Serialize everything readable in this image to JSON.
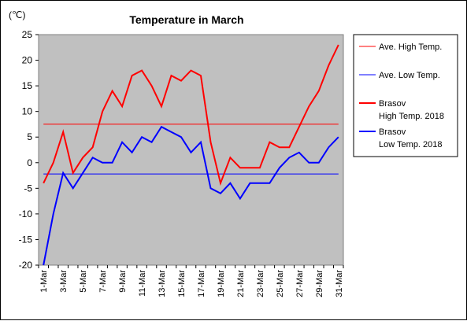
{
  "chart_data": {
    "type": "line",
    "title": "Temperature in March",
    "unit_label": "(℃)",
    "ylim": [
      -20,
      25
    ],
    "yticks": [
      25,
      20,
      15,
      10,
      5,
      0,
      -5,
      -10,
      -15,
      -20
    ],
    "grid": false,
    "legend_placement": "right",
    "plot_background": "#c0c0c0",
    "categories": [
      "1-Mar",
      "2-Mar",
      "3-Mar",
      "4-Mar",
      "5-Mar",
      "6-Mar",
      "7-Mar",
      "8-Mar",
      "9-Mar",
      "10-Mar",
      "11-Mar",
      "12-Mar",
      "13-Mar",
      "14-Mar",
      "15-Mar",
      "16-Mar",
      "17-Mar",
      "18-Mar",
      "19-Mar",
      "20-Mar",
      "21-Mar",
      "22-Mar",
      "23-Mar",
      "24-Mar",
      "25-Mar",
      "26-Mar",
      "27-Mar",
      "28-Mar",
      "29-Mar",
      "30-Mar",
      "31-Mar"
    ],
    "x_tick_labels": [
      "1-Mar",
      "3-Mar",
      "5-Mar",
      "7-Mar",
      "9-Mar",
      "11-Mar",
      "13-Mar",
      "15-Mar",
      "17-Mar",
      "19-Mar",
      "21-Mar",
      "23-Mar",
      "25-Mar",
      "27-Mar",
      "29-Mar",
      "31-Mar"
    ],
    "series": [
      {
        "name": "Ave. High Temp.",
        "color": "#ff0000",
        "width": 1,
        "values": [
          7.5,
          7.5,
          7.5,
          7.5,
          7.5,
          7.5,
          7.5,
          7.5,
          7.5,
          7.5,
          7.5,
          7.5,
          7.5,
          7.5,
          7.5,
          7.5,
          7.5,
          7.5,
          7.5,
          7.5,
          7.5,
          7.5,
          7.5,
          7.5,
          7.5,
          7.5,
          7.5,
          7.5,
          7.5,
          7.5,
          7.5
        ]
      },
      {
        "name": "Ave. Low Temp.",
        "color": "#0000ff",
        "width": 1,
        "values": [
          -2.2,
          -2.2,
          -2.2,
          -2.2,
          -2.2,
          -2.2,
          -2.2,
          -2.2,
          -2.2,
          -2.2,
          -2.2,
          -2.2,
          -2.2,
          -2.2,
          -2.2,
          -2.2,
          -2.2,
          -2.2,
          -2.2,
          -2.2,
          -2.2,
          -2.2,
          -2.2,
          -2.2,
          -2.2,
          -2.2,
          -2.2,
          -2.2,
          -2.2,
          -2.2,
          -2.2
        ]
      },
      {
        "name": "Brasov High Temp. 2018",
        "legend_lines": [
          "Brasov",
          "High Temp. 2018"
        ],
        "color": "#ff0000",
        "width": 2,
        "values": [
          -4,
          0,
          6,
          -2,
          1,
          3,
          10,
          14,
          11,
          17,
          18,
          15,
          11,
          17,
          16,
          18,
          17,
          4,
          -4,
          1,
          -1,
          -1,
          -1,
          4,
          3,
          3,
          7,
          11,
          14,
          19,
          23
        ]
      },
      {
        "name": "Brasov Low Temp. 2018",
        "legend_lines": [
          "Brasov",
          "Low Temp. 2018"
        ],
        "color": "#0000ff",
        "width": 2,
        "values": [
          -20,
          -10,
          -2,
          -5,
          -2,
          1,
          0,
          0,
          4,
          2,
          5,
          4,
          7,
          6,
          5,
          2,
          4,
          -5,
          -6,
          -4,
          -7,
          -4,
          -4,
          -4,
          -1,
          1,
          2,
          0,
          0,
          3,
          5
        ]
      }
    ]
  }
}
